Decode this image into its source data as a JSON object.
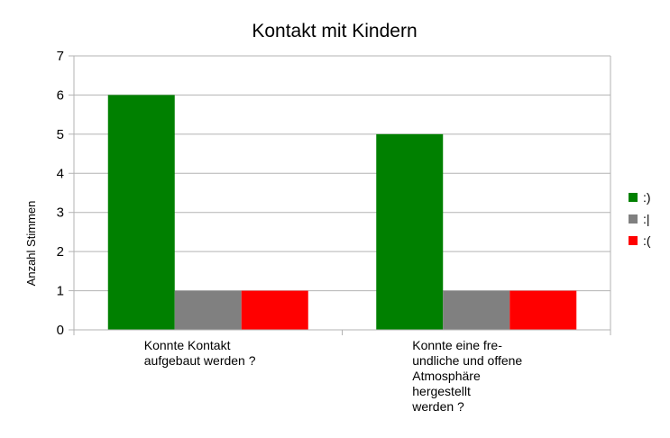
{
  "chart_data": {
    "type": "bar",
    "title": "Kontakt mit Kindern",
    "xlabel": "",
    "ylabel": "Anzahl Stimmen",
    "categories": [
      [
        "Konnte Kontakt",
        "aufgebaut werden ?"
      ],
      [
        "Konnte eine fre-",
        "undliche und offene",
        "Atmosphäre",
        "hergestellt",
        "werden ?"
      ]
    ],
    "series": [
      {
        "name": ":)",
        "values": [
          6,
          5
        ],
        "color": "#008000"
      },
      {
        "name": ":|",
        "values": [
          1,
          1
        ],
        "color": "#808080"
      },
      {
        "name": ":(",
        "values": [
          1,
          1
        ],
        "color": "#ff0000"
      }
    ],
    "ylim": [
      0,
      7
    ],
    "yticks": [
      0,
      1,
      2,
      3,
      4,
      5,
      6,
      7
    ],
    "grid": true,
    "legend": "right"
  }
}
